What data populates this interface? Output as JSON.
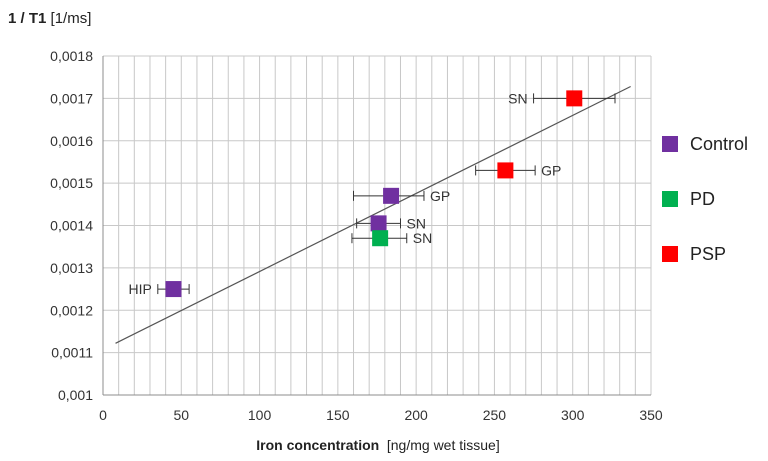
{
  "chart_data": {
    "type": "scatter",
    "ylabel_bold": "1 / T1",
    "ylabel_unit": "[1/ms]",
    "xlabel_bold": "Iron concentration",
    "xlabel_unit": "[ng/mg wet tissue]",
    "xlim": [
      0,
      350
    ],
    "ylim": [
      0.001,
      0.0018
    ],
    "xticks": [
      "0",
      "50",
      "100",
      "150",
      "200",
      "250",
      "300",
      "350"
    ],
    "yticks": [
      "0,001",
      "0,0011",
      "0,0012",
      "0,0013",
      "0,0014",
      "0,0015",
      "0,0016",
      "0,0017",
      "0,0018"
    ],
    "grid": true,
    "legend_position": "right",
    "series": [
      {
        "name": "Control",
        "color": "#7030A0",
        "points": [
          {
            "label": "HIP",
            "label_side": "left",
            "x": 45,
            "y": 0.00125,
            "xerr": [
              35,
              55
            ]
          },
          {
            "label": "SN",
            "label_side": "right",
            "x": 176,
            "y": 0.001405,
            "xerr": [
              162,
              190
            ]
          },
          {
            "label": "GP",
            "label_side": "right",
            "x": 184,
            "y": 0.00147,
            "xerr": [
              160,
              205
            ]
          }
        ]
      },
      {
        "name": "PD",
        "color": "#00B050",
        "points": [
          {
            "label": "SN",
            "label_side": "right",
            "x": 177,
            "y": 0.00137,
            "xerr": [
              159,
              194
            ]
          }
        ]
      },
      {
        "name": "PSP",
        "color": "#FF0000",
        "points": [
          {
            "label": "GP",
            "label_side": "right",
            "x": 257,
            "y": 0.00153,
            "xerr": [
              238,
              276
            ]
          },
          {
            "label": "SN",
            "label_side": "left",
            "x": 301,
            "y": 0.0017,
            "xerr": [
              275,
              327
            ]
          }
        ]
      }
    ],
    "trendline": {
      "x": [
        8,
        337
      ],
      "y": [
        0.001122,
        0.001728
      ]
    }
  }
}
